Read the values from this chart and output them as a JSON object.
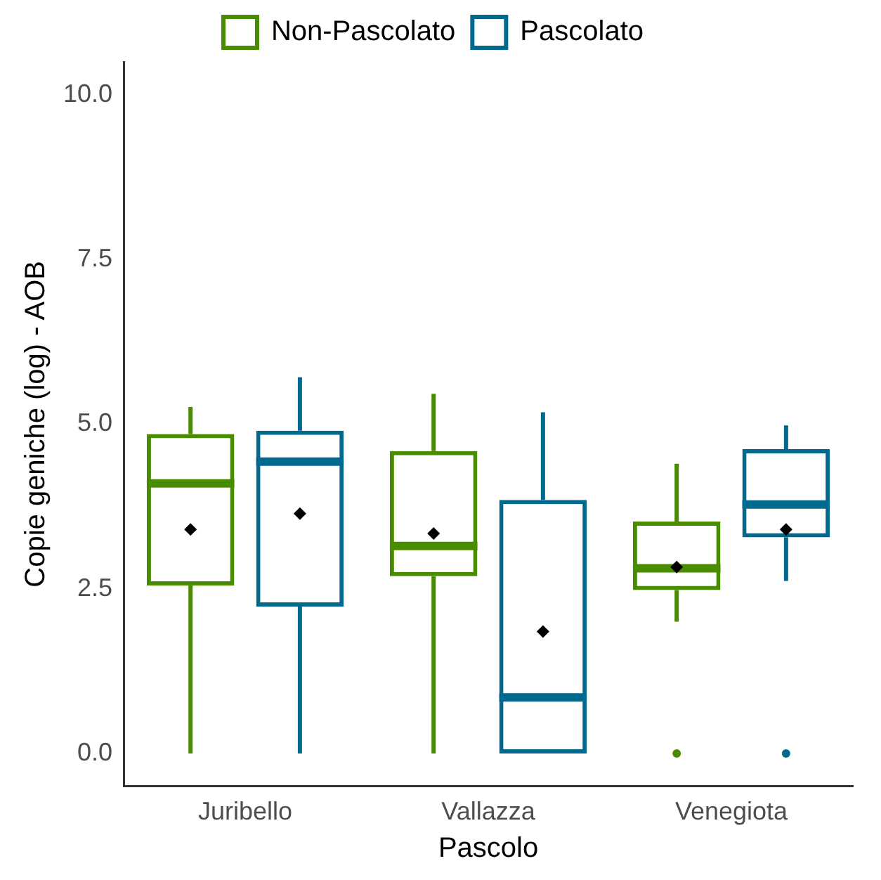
{
  "chart_data": {
    "type": "box",
    "xlabel": "Pascolo",
    "ylabel": "Copie geniche (log) - AOB",
    "categories": [
      "Juribello",
      "Vallazza",
      "Venegiota"
    ],
    "ylim": [
      -0.5,
      10.5
    ],
    "yticks": [
      {
        "value": 0,
        "label": "0.0"
      },
      {
        "value": 2.5,
        "label": "2.5"
      },
      {
        "value": 5,
        "label": "5.0"
      },
      {
        "value": 7.5,
        "label": "7.5"
      },
      {
        "value": 10,
        "label": "10.0"
      }
    ],
    "grid": false,
    "legend": "top",
    "series": [
      {
        "name": "Non-Pascolato",
        "color": "#4a8c00",
        "boxes": [
          {
            "low": 0,
            "q1": 2.55,
            "median": 4.1,
            "q3": 4.85,
            "high": 5.26,
            "mean": 3.4
          },
          {
            "low": 0,
            "q1": 2.69,
            "median": 3.15,
            "q3": 4.59,
            "high": 5.46,
            "mean": 3.34
          },
          {
            "low": 2.0,
            "q1": 2.48,
            "median": 2.81,
            "q3": 3.52,
            "high": 4.4,
            "mean": 2.83,
            "outliers": [
              0
            ]
          }
        ]
      },
      {
        "name": "Pascolato",
        "color": "#006a8e",
        "boxes": [
          {
            "low": 0,
            "q1": 2.23,
            "median": 4.43,
            "q3": 4.9,
            "high": 5.71,
            "mean": 3.64
          },
          {
            "low": 0,
            "q1": 0,
            "median": 0.85,
            "q3": 3.85,
            "high": 5.18,
            "mean": 1.85
          },
          {
            "low": 2.62,
            "q1": 3.28,
            "median": 3.78,
            "q3": 4.62,
            "high": 4.98,
            "mean": 3.4,
            "outliers": [
              0
            ]
          }
        ]
      }
    ]
  }
}
